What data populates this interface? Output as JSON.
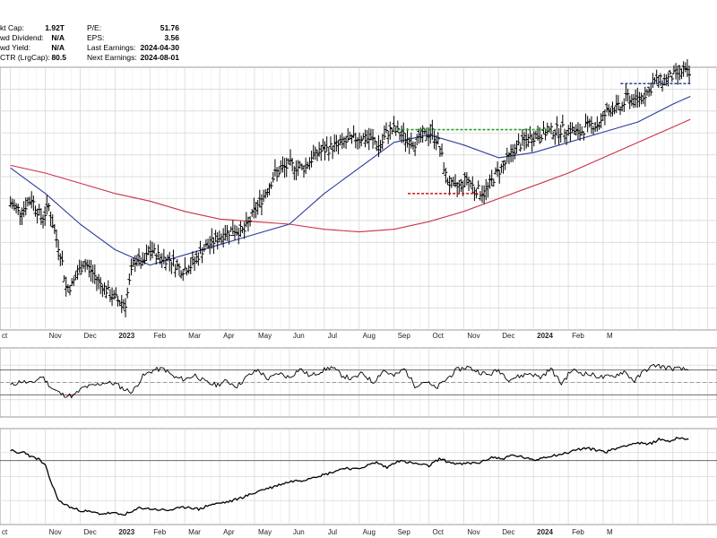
{
  "info_panel": {
    "left": [
      {
        "label": "kt Cap:",
        "value": "1.92T"
      },
      {
        "label": "wd Dividend:",
        "value": "N/A"
      },
      {
        "label": "wd Yield:",
        "value": "N/A"
      },
      {
        "label": "CTR (LrgCap):",
        "value": "80.5"
      }
    ],
    "right": [
      {
        "label": "P/E:",
        "value": "51.76"
      },
      {
        "label": "EPS:",
        "value": "3.56"
      },
      {
        "label": "Last Earnings:",
        "value": "2024-04-30"
      },
      {
        "label": "Next Earnings:",
        "value": "2024-08-01"
      }
    ]
  },
  "colors": {
    "price_bars": "#000000",
    "ma_short": "#2b3a9c",
    "ma_long": "#c8324a",
    "resistance": "#2a9a2a",
    "support": "#d02020",
    "breakout_level": "#2b3a9c",
    "grid": "#d8d8d8",
    "rsi_oversold_fill": "#d02020"
  },
  "chart_data": [
    {
      "type": "line",
      "panel": "price",
      "ohlc_bars": true,
      "x_tick_labels": [
        "ct",
        "Nov",
        "Dec",
        "2023",
        "Feb",
        "Mar",
        "Apr",
        "May",
        "Jun",
        "Jul",
        "Aug",
        "Sep",
        "Oct",
        "Nov",
        "Dec",
        "2024",
        "Feb",
        "M"
      ],
      "bold_tick_labels": [
        "2023",
        "2024"
      ],
      "x_months": 19.5,
      "y_range": [
        0,
        100
      ],
      "series": [
        {
          "role": "price",
          "x": [
            0,
            0.3,
            0.6,
            0.9,
            1.1,
            1.3,
            1.45,
            1.6,
            1.75,
            1.9,
            2.1,
            2.3,
            2.5,
            2.7,
            2.9,
            3.1,
            3.3,
            3.45,
            3.6,
            3.8,
            4.0,
            4.3,
            4.6,
            4.9,
            5.2,
            5.5,
            5.8,
            6.1,
            6.4,
            6.7,
            7.0,
            7.3,
            7.6,
            8.0,
            8.4,
            8.8,
            9.2,
            9.6,
            10.0,
            10.4,
            10.6,
            10.8,
            11.0,
            11.3,
            11.6,
            11.9,
            12.1,
            12.3,
            12.5,
            12.7,
            12.9,
            13.1,
            13.3,
            13.6,
            13.9,
            14.2,
            14.5,
            14.8,
            15.1,
            15.4,
            15.8,
            16.1,
            16.3,
            16.5,
            16.7,
            16.9,
            17.1,
            17.3,
            17.5,
            17.7,
            17.9,
            18.1,
            18.3,
            18.5,
            18.7,
            19.0,
            19.3,
            19.5
          ],
          "values": [
            48,
            45,
            50,
            42,
            47,
            35,
            28,
            15,
            16,
            20,
            25,
            22,
            18,
            15,
            12,
            10,
            9,
            20,
            27,
            24,
            30,
            27,
            26,
            22,
            24,
            30,
            33,
            36,
            38,
            37,
            45,
            52,
            60,
            63,
            62,
            68,
            70,
            72,
            74,
            73,
            70,
            76,
            77,
            74,
            72,
            75,
            76,
            71,
            58,
            54,
            55,
            58,
            54,
            52,
            59,
            64,
            70,
            73,
            75,
            76,
            77,
            77,
            75,
            78,
            79,
            79,
            84,
            86,
            85,
            90,
            88,
            90,
            92,
            96,
            96,
            98,
            100,
            98
          ]
        },
        {
          "role": "ma_short",
          "x": [
            0,
            1,
            2,
            3,
            4,
            5,
            6,
            7,
            8,
            9,
            10,
            11,
            12,
            13,
            14,
            15,
            16,
            17,
            18,
            19,
            19.5
          ],
          "values": [
            62,
            52,
            40,
            30,
            24,
            28,
            32,
            36,
            40,
            52,
            62,
            72,
            75,
            71,
            66,
            68,
            72,
            76,
            80,
            87,
            90
          ]
        },
        {
          "role": "ma_long",
          "x": [
            0,
            1,
            2,
            3,
            4,
            5,
            6,
            7,
            8,
            9,
            10,
            11,
            12,
            13,
            14,
            15,
            16,
            17,
            18,
            19,
            19.5
          ],
          "values": [
            63,
            60,
            56,
            52,
            49,
            45,
            42,
            41,
            40,
            38,
            37,
            38,
            41,
            45,
            50,
            55,
            60,
            66,
            72,
            78,
            81
          ]
        }
      ],
      "annotations": [
        {
          "role": "resistance",
          "x": [
            11.1,
            15.5
          ],
          "value": 77
        },
        {
          "role": "support",
          "x": [
            11.4,
            13.5
          ],
          "value": 52
        },
        {
          "role": "breakout_level",
          "x": [
            17.5,
            19.5
          ],
          "value": 95
        }
      ]
    },
    {
      "type": "line",
      "panel": "rsi",
      "y_range": [
        0,
        100
      ],
      "reference_lines": [
        30,
        50,
        70
      ],
      "series": [
        {
          "role": "rsi",
          "x": [
            0,
            0.3,
            0.6,
            0.9,
            1.2,
            1.5,
            1.8,
            2.1,
            2.4,
            2.7,
            3.0,
            3.3,
            3.5,
            3.8,
            4.1,
            4.4,
            4.7,
            5.0,
            5.3,
            5.6,
            5.9,
            6.2,
            6.5,
            6.8,
            7.1,
            7.4,
            7.7,
            8.0,
            8.3,
            8.6,
            8.9,
            9.2,
            9.5,
            9.8,
            10.1,
            10.4,
            10.7,
            11.0,
            11.3,
            11.6,
            11.9,
            12.2,
            12.5,
            12.8,
            13.1,
            13.4,
            13.7,
            14.0,
            14.3,
            14.6,
            14.9,
            15.2,
            15.5,
            15.8,
            16.1,
            16.4,
            16.7,
            17.0,
            17.3,
            17.6,
            17.9,
            18.2,
            18.5,
            18.8,
            19.1,
            19.5
          ],
          "values": [
            45,
            52,
            48,
            60,
            40,
            30,
            28,
            42,
            45,
            50,
            48,
            38,
            35,
            60,
            70,
            72,
            58,
            55,
            62,
            50,
            46,
            52,
            44,
            60,
            70,
            55,
            65,
            58,
            72,
            60,
            68,
            75,
            62,
            55,
            65,
            50,
            70,
            60,
            72,
            45,
            52,
            40,
            55,
            70,
            75,
            68,
            62,
            70,
            55,
            60,
            65,
            58,
            72,
            48,
            70,
            65,
            62,
            58,
            60,
            68,
            52,
            70,
            78,
            74,
            72,
            70
          ]
        }
      ]
    },
    {
      "type": "line",
      "panel": "relative_strength",
      "y_range": [
        0,
        100
      ],
      "reference_lines": [
        68
      ],
      "series": [
        {
          "role": "relative_strength",
          "x": [
            0,
            0.2,
            0.4,
            0.6,
            0.8,
            1.0,
            1.2,
            1.4,
            1.6,
            1.8,
            2.0,
            2.3,
            2.6,
            2.9,
            3.2,
            3.5,
            3.7,
            3.9,
            4.2,
            4.5,
            4.8,
            5.1,
            5.4,
            5.7,
            6.0,
            6.3,
            6.6,
            6.9,
            7.2,
            7.5,
            7.8,
            8.1,
            8.4,
            8.7,
            9.0,
            9.3,
            9.6,
            9.9,
            10.2,
            10.5,
            10.8,
            11.1,
            11.4,
            11.7,
            12.0,
            12.3,
            12.6,
            12.9,
            13.2,
            13.5,
            13.8,
            14.1,
            14.4,
            14.7,
            15.0,
            15.3,
            15.6,
            15.9,
            16.2,
            16.5,
            16.8,
            17.1,
            17.4,
            17.7,
            18.0,
            18.3,
            18.6,
            18.9,
            19.2,
            19.5
          ],
          "values": [
            80,
            76,
            78,
            72,
            70,
            62,
            40,
            22,
            18,
            14,
            12,
            10,
            8,
            9,
            7,
            10,
            15,
            14,
            13,
            12,
            14,
            16,
            13,
            18,
            20,
            22,
            26,
            30,
            35,
            38,
            42,
            45,
            46,
            50,
            52,
            56,
            60,
            58,
            62,
            66,
            60,
            68,
            66,
            64,
            62,
            70,
            66,
            64,
            65,
            66,
            72,
            70,
            74,
            72,
            68,
            72,
            74,
            76,
            80,
            82,
            80,
            78,
            82,
            86,
            88,
            86,
            92,
            90,
            94,
            92
          ]
        }
      ]
    }
  ]
}
